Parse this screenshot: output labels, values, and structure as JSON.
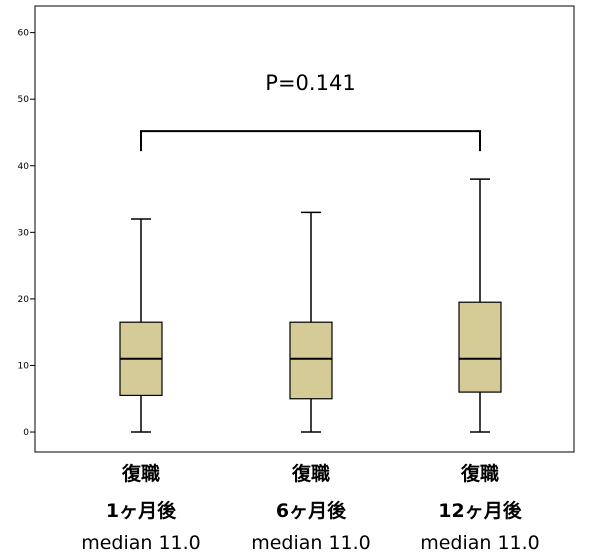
{
  "chart_data": {
    "type": "boxplot",
    "title": "",
    "xlabel": "",
    "ylabel": "",
    "ylim": [
      -3,
      64
    ],
    "yticks": [
      0,
      10,
      20,
      30,
      40,
      50,
      60
    ],
    "grid": false,
    "box_color": "#d4cb97",
    "categories": [
      {
        "line1": "復職",
        "line2": "1ヶ月後",
        "line3": "median 11.0"
      },
      {
        "line1": "復職",
        "line2": "6ヶ月後",
        "line3": "median 11.0"
      },
      {
        "line1": "復職",
        "line2": "12ヶ月後",
        "line3": "median 11.0"
      }
    ],
    "boxes": [
      {
        "min": 0,
        "q1": 5.5,
        "median": 11.0,
        "q3": 16.5,
        "max": 32
      },
      {
        "min": 0,
        "q1": 5.0,
        "median": 11.0,
        "q3": 16.5,
        "max": 33
      },
      {
        "min": 0,
        "q1": 6.0,
        "median": 11.0,
        "q3": 19.5,
        "max": 38
      }
    ],
    "annotation": {
      "text": "P=0.141",
      "bracket_from": 0,
      "bracket_to": 2,
      "bracket_y": 45.2,
      "bracket_drop": 42.2
    }
  }
}
